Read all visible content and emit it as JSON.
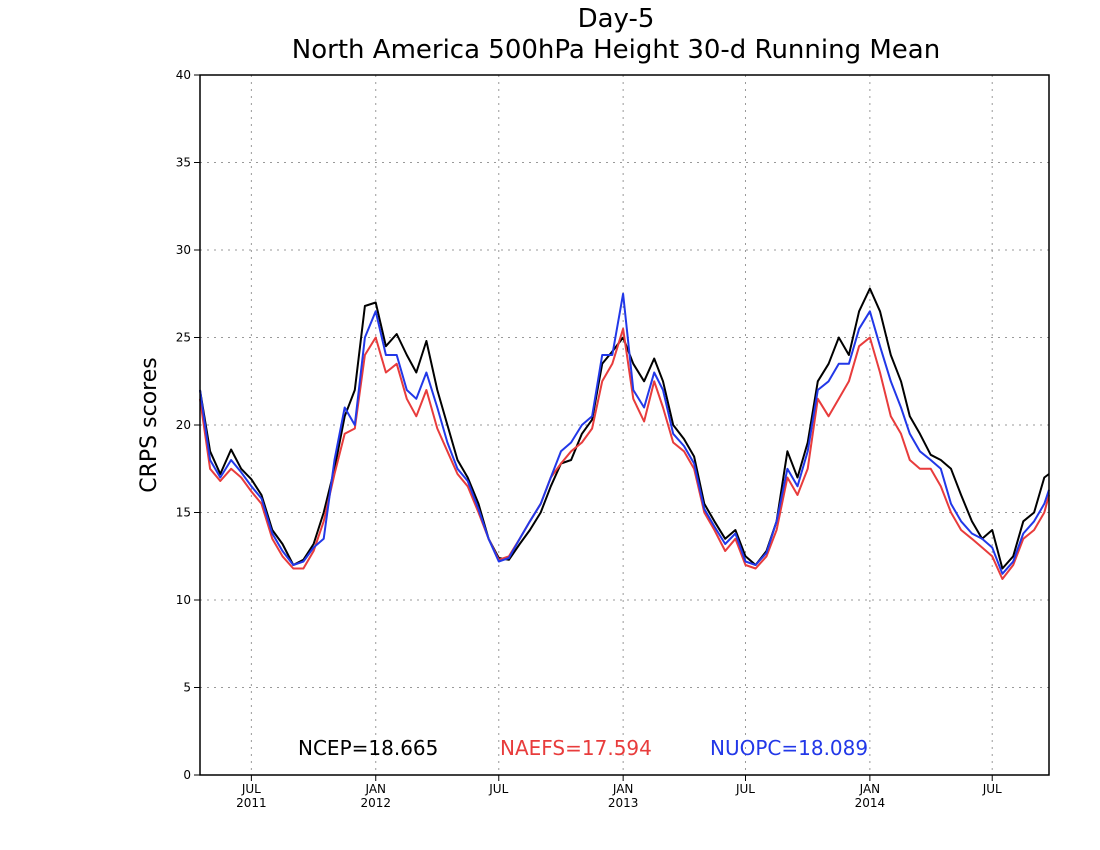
{
  "chart_data": {
    "type": "line",
    "title": "Day-5",
    "subtitle": "North America 500hPa Height 30-d Running Mean",
    "ylabel": "CRPS scores",
    "xlabel": "",
    "ylim": [
      0,
      40
    ],
    "yticks": [
      0,
      5,
      10,
      15,
      20,
      25,
      30,
      35,
      40
    ],
    "grid": true,
    "x_ticks": [
      {
        "date": "2011-07-01",
        "line1": "JUL",
        "line2": "2011"
      },
      {
        "date": "2012-01-01",
        "line1": "JAN",
        "line2": "2012"
      },
      {
        "date": "2012-07-01",
        "line1": "JUL",
        "line2": ""
      },
      {
        "date": "2013-01-01",
        "line1": "JAN",
        "line2": "2013"
      },
      {
        "date": "2013-07-01",
        "line1": "JUL",
        "line2": ""
      },
      {
        "date": "2014-01-01",
        "line1": "JAN",
        "line2": "2014"
      },
      {
        "date": "2014-07-01",
        "line1": "JUL",
        "line2": ""
      }
    ],
    "xlim": [
      "2011-04-16",
      "2014-09-23"
    ],
    "dates": [
      "2011-04-16",
      "2011-05-01",
      "2011-05-16",
      "2011-06-01",
      "2011-06-16",
      "2011-07-01",
      "2011-07-16",
      "2011-08-01",
      "2011-08-16",
      "2011-09-01",
      "2011-09-16",
      "2011-10-01",
      "2011-10-16",
      "2011-11-01",
      "2011-11-16",
      "2011-12-01",
      "2011-12-16",
      "2012-01-01",
      "2012-01-16",
      "2012-02-01",
      "2012-02-16",
      "2012-03-01",
      "2012-03-16",
      "2012-04-01",
      "2012-04-16",
      "2012-05-01",
      "2012-05-16",
      "2012-06-01",
      "2012-06-16",
      "2012-07-01",
      "2012-07-16",
      "2012-08-01",
      "2012-08-16",
      "2012-09-01",
      "2012-09-16",
      "2012-10-01",
      "2012-10-16",
      "2012-11-01",
      "2012-11-16",
      "2012-12-01",
      "2012-12-16",
      "2013-01-01",
      "2013-01-16",
      "2013-02-01",
      "2013-02-16",
      "2013-03-01",
      "2013-03-16",
      "2013-04-01",
      "2013-04-16",
      "2013-05-01",
      "2013-05-16",
      "2013-06-01",
      "2013-06-16",
      "2013-07-01",
      "2013-07-16",
      "2013-08-01",
      "2013-08-16",
      "2013-09-01",
      "2013-09-16",
      "2013-10-01",
      "2013-10-16",
      "2013-11-01",
      "2013-11-16",
      "2013-12-01",
      "2013-12-16",
      "2014-01-01",
      "2014-01-16",
      "2014-02-01",
      "2014-02-16",
      "2014-03-01",
      "2014-03-16",
      "2014-04-01",
      "2014-04-16",
      "2014-05-01",
      "2014-05-16",
      "2014-06-01",
      "2014-06-16",
      "2014-07-01",
      "2014-07-16",
      "2014-08-01",
      "2014-08-16",
      "2014-09-01",
      "2014-09-16",
      "2014-09-23"
    ],
    "series": [
      {
        "name": "NCEP",
        "color": "#000000",
        "values": [
          22.0,
          18.5,
          17.2,
          18.6,
          17.5,
          16.9,
          16.0,
          14.0,
          13.2,
          12.0,
          12.3,
          13.2,
          15.0,
          17.5,
          20.5,
          22.0,
          26.8,
          27.0,
          24.5,
          25.2,
          24.0,
          23.0,
          24.8,
          22.0,
          20.0,
          18.0,
          17.0,
          15.5,
          13.5,
          12.4,
          12.3,
          13.2,
          14.0,
          15.0,
          16.5,
          17.8,
          18.0,
          19.5,
          20.3,
          23.5,
          24.2,
          25.0,
          23.5,
          22.5,
          23.8,
          22.5,
          20.0,
          19.2,
          18.2,
          15.5,
          14.5,
          13.5,
          14.0,
          12.5,
          12.0,
          12.8,
          14.5,
          18.5,
          17.0,
          19.0,
          22.5,
          23.5,
          25.0,
          24.0,
          26.5,
          27.8,
          26.5,
          24.0,
          22.5,
          20.5,
          19.5,
          18.3,
          18.0,
          17.5,
          16.0,
          14.5,
          13.5,
          14.0,
          11.8,
          12.5,
          14.5,
          15.0,
          17.0,
          17.2
        ]
      },
      {
        "name": "NAEFS",
        "color": "#e83c3c",
        "values": [
          21.5,
          17.5,
          16.8,
          17.5,
          17.0,
          16.2,
          15.5,
          13.5,
          12.5,
          11.8,
          11.8,
          12.8,
          14.5,
          17.2,
          19.5,
          19.8,
          24.0,
          25.0,
          23.0,
          23.5,
          21.5,
          20.5,
          22.0,
          19.8,
          18.5,
          17.2,
          16.5,
          15.0,
          13.5,
          12.3,
          12.5,
          13.5,
          14.5,
          15.5,
          17.0,
          17.8,
          18.5,
          19.0,
          19.8,
          22.5,
          23.5,
          25.5,
          21.5,
          20.2,
          22.5,
          21.0,
          19.0,
          18.5,
          17.5,
          15.0,
          14.0,
          12.8,
          13.5,
          12.0,
          11.8,
          12.5,
          14.0,
          17.0,
          16.0,
          17.5,
          21.5,
          20.5,
          21.5,
          22.5,
          24.5,
          25.0,
          23.0,
          20.5,
          19.5,
          18.0,
          17.5,
          17.5,
          16.5,
          15.0,
          14.0,
          13.5,
          13.0,
          12.5,
          11.2,
          12.0,
          13.5,
          14.0,
          15.0,
          16.0
        ]
      },
      {
        "name": "NUOPC",
        "color": "#2238e8",
        "values": [
          22.0,
          18.0,
          17.0,
          18.0,
          17.3,
          16.5,
          15.8,
          13.8,
          12.8,
          12.0,
          12.2,
          13.0,
          13.5,
          18.0,
          21.0,
          20.0,
          25.0,
          26.5,
          24.0,
          24.0,
          22.0,
          21.5,
          23.0,
          21.0,
          19.0,
          17.5,
          16.8,
          15.2,
          13.5,
          12.2,
          12.4,
          13.5,
          14.5,
          15.5,
          17.0,
          18.5,
          19.0,
          20.0,
          20.5,
          24.0,
          24.0,
          27.5,
          22.0,
          21.0,
          23.0,
          22.0,
          19.5,
          18.8,
          17.8,
          15.2,
          14.2,
          13.2,
          13.8,
          12.2,
          12.0,
          12.7,
          14.5,
          17.5,
          16.5,
          18.5,
          22.0,
          22.5,
          23.5,
          23.5,
          25.5,
          26.5,
          24.5,
          22.5,
          21.0,
          19.5,
          18.5,
          18.0,
          17.5,
          15.5,
          14.5,
          13.8,
          13.5,
          13.0,
          11.5,
          12.2,
          13.8,
          14.5,
          15.5,
          16.3
        ]
      }
    ],
    "legend_stats": [
      {
        "text": "NCEP=18.665",
        "color": "#000000"
      },
      {
        "text": "NAEFS=17.594",
        "color": "#e83c3c"
      },
      {
        "text": "NUOPC=18.089",
        "color": "#2238e8"
      }
    ]
  }
}
